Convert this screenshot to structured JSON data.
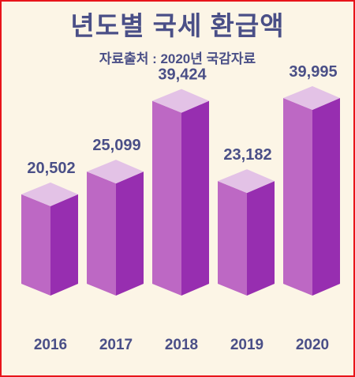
{
  "chart_data": {
    "type": "bar",
    "title": "년도별 국세 환급액",
    "subtitle": "자료출처 : 2020년 국감자료",
    "categories": [
      "2016",
      "2017",
      "2018",
      "2019",
      "2020"
    ],
    "values": [
      20502,
      25099,
      39424,
      23182,
      39995
    ],
    "value_labels": [
      "20,502",
      "25,099",
      "39,424",
      "23,182",
      "39,995"
    ],
    "style": "3d-column",
    "colors": {
      "front": "#bd68c4",
      "side": "#972eb0",
      "top": "#e3c2e6",
      "text": "#4a4f87",
      "background": "#fcf5e6",
      "border": "#e8141a"
    }
  }
}
